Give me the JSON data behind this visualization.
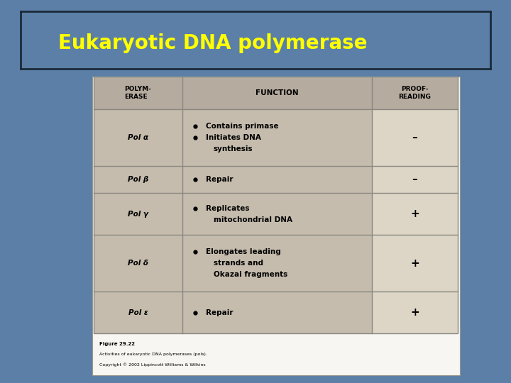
{
  "title": "Eukaryotic DNA polymerase",
  "title_color": "#FFFF00",
  "title_fontsize": 20,
  "bg_color": "#5b7fa6",
  "title_box_edge": "#1a2a3a",
  "table_bg_header": "#b5ab9e",
  "table_bg_body_left": "#c5bcad",
  "table_bg_proof": "#ddd5c5",
  "table_border": "#888880",
  "white_panel_bg": "#f8f6f2",
  "rows": [
    {
      "polymerase": "Pol α",
      "function_lines": [
        "Contains primase",
        "Initiates DNA",
        "synthesis"
      ],
      "bullet_line": [
        true,
        true,
        false
      ],
      "proofreading": "–"
    },
    {
      "polymerase": "Pol β",
      "function_lines": [
        "Repair"
      ],
      "bullet_line": [
        true
      ],
      "proofreading": "–"
    },
    {
      "polymerase": "Pol γ",
      "function_lines": [
        "Replicates",
        "mitochondrial DNA"
      ],
      "bullet_line": [
        true,
        false
      ],
      "proofreading": "+"
    },
    {
      "polymerase": "Pol δ",
      "function_lines": [
        "Elongates leading",
        "strands and",
        "Okazai fragments"
      ],
      "bullet_line": [
        true,
        false,
        false
      ],
      "proofreading": "+"
    },
    {
      "polymerase": "Pol ε",
      "function_lines": [
        "Repair"
      ],
      "bullet_line": [
        true
      ],
      "proofreading": "+"
    }
  ],
  "caption_line1": "Figure 29.22",
  "caption_line2": "Activities of eukaryotic DNA polymerases (pols).",
  "caption_line3": "Copyright © 2002 Lippincott Williams & Wilkins"
}
